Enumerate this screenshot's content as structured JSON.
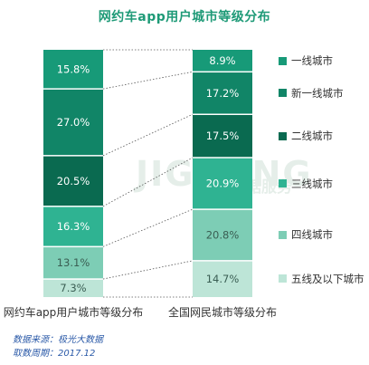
{
  "watermark": {
    "text": "JIGUANG",
    "subtext": "数据服务"
  },
  "chart_data": {
    "type": "bar",
    "stacked": true,
    "normalized": true,
    "title": "网约车app用户城市等级分布",
    "categories": [
      "网约车app用户城市等级分布",
      "全国网民城市等级分布"
    ],
    "series": [
      {
        "name": "一线城市",
        "color": "#179a78",
        "values": [
          15.8,
          8.9
        ]
      },
      {
        "name": "新一线城市",
        "color": "#118567",
        "values": [
          27.0,
          17.2
        ]
      },
      {
        "name": "二线城市",
        "color": "#0a6a50",
        "values": [
          20.5,
          17.5
        ]
      },
      {
        "name": "三线城市",
        "color": "#2fb392",
        "values": [
          16.3,
          20.9
        ]
      },
      {
        "name": "四线城市",
        "color": "#7dcdb5",
        "values": [
          13.1,
          20.8
        ]
      },
      {
        "name": "五线及以下城市",
        "color": "#bde5d7",
        "values": [
          7.3,
          14.7
        ]
      }
    ],
    "data_labels": [
      [
        "15.8%",
        "27.0%",
        "20.5%",
        "16.3%",
        "13.1%",
        "7.3%"
      ],
      [
        "8.9%",
        "17.2%",
        "17.5%",
        "20.9%",
        "20.8%",
        "14.7%"
      ]
    ],
    "legend": "right"
  },
  "footer": {
    "source": "数据来源：极光大数据",
    "period": "取数周期：2017.12"
  }
}
